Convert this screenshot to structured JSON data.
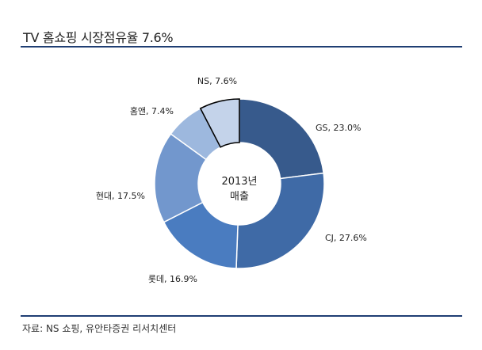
{
  "page": {
    "title": "TV 홈쇼핑 시장점유율 7.6%",
    "source": "자료: NS 쇼핑, 유안타증권 리서치센터"
  },
  "chart_data": {
    "type": "pie",
    "style": "donut",
    "center_text": [
      "2013년",
      "매출"
    ],
    "slices": [
      {
        "name": "GS",
        "value": 23.0,
        "label": "GS, 23.0%",
        "color": "#375a8c"
      },
      {
        "name": "CJ",
        "value": 27.6,
        "label": "CJ, 27.6%",
        "color": "#3f6aa6"
      },
      {
        "name": "롯데",
        "value": 16.9,
        "label": "롯데, 16.9%",
        "color": "#4a7cc0"
      },
      {
        "name": "현대",
        "value": 17.5,
        "label": "현대, 17.5%",
        "color": "#7297cd"
      },
      {
        "name": "홈앤",
        "value": 7.4,
        "label": "홈앤, 7.4%",
        "color": "#9db8de"
      },
      {
        "name": "NS",
        "value": 7.6,
        "label": "NS, 7.6%",
        "color": "#c4d3ea",
        "highlight": true
      }
    ]
  }
}
